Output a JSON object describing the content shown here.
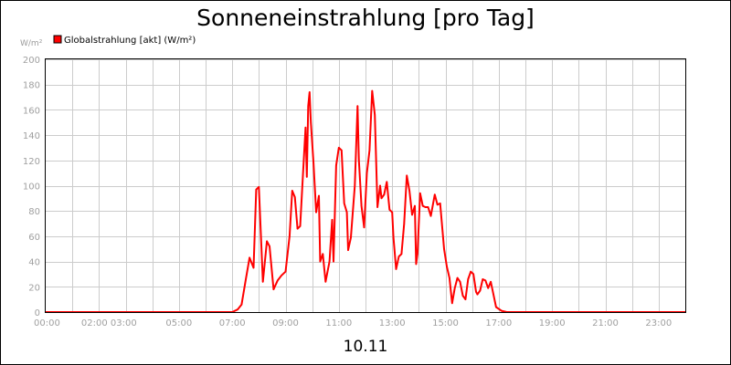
{
  "chart_data": {
    "type": "line",
    "title": "Sonneneinstrahlung [pro Tag]",
    "ylabel": "W/m²",
    "xlabel": "10.11",
    "ylim": [
      0,
      200
    ],
    "y_ticks": [
      0,
      20,
      40,
      60,
      80,
      100,
      120,
      140,
      160,
      180,
      200
    ],
    "x_ticks": [
      {
        "h": 0,
        "label": "00:00"
      },
      {
        "h": 2,
        "label": "02:00 03:00"
      },
      {
        "h": 5,
        "label": "05:00"
      },
      {
        "h": 7,
        "label": "07:00"
      },
      {
        "h": 9,
        "label": "09:00"
      },
      {
        "h": 11,
        "label": "11:00"
      },
      {
        "h": 13,
        "label": "13:00"
      },
      {
        "h": 15,
        "label": "15:00"
      },
      {
        "h": 17,
        "label": "17:00"
      },
      {
        "h": 19,
        "label": "19:00"
      },
      {
        "h": 21,
        "label": "21:00"
      },
      {
        "h": 23,
        "label": "23:00"
      }
    ],
    "grid": true,
    "legend_position": "top-left",
    "series": [
      {
        "name": "Globalstrahlung [akt] (W/m²)",
        "color": "#ff0000",
        "points": [
          [
            0,
            0
          ],
          [
            7.0,
            0
          ],
          [
            7.2,
            2
          ],
          [
            7.35,
            6
          ],
          [
            7.5,
            25
          ],
          [
            7.65,
            43
          ],
          [
            7.8,
            35
          ],
          [
            7.9,
            97
          ],
          [
            8.0,
            99
          ],
          [
            8.15,
            24
          ],
          [
            8.3,
            56
          ],
          [
            8.4,
            52
          ],
          [
            8.55,
            18
          ],
          [
            8.7,
            25
          ],
          [
            8.85,
            29
          ],
          [
            9.0,
            32
          ],
          [
            9.15,
            60
          ],
          [
            9.25,
            96
          ],
          [
            9.35,
            91
          ],
          [
            9.45,
            66
          ],
          [
            9.55,
            68
          ],
          [
            9.65,
            108
          ],
          [
            9.75,
            146
          ],
          [
            9.8,
            107
          ],
          [
            9.85,
            163
          ],
          [
            9.9,
            174
          ],
          [
            9.95,
            150
          ],
          [
            10.05,
            118
          ],
          [
            10.15,
            79
          ],
          [
            10.25,
            92
          ],
          [
            10.3,
            40
          ],
          [
            10.4,
            46
          ],
          [
            10.5,
            24
          ],
          [
            10.65,
            40
          ],
          [
            10.75,
            73
          ],
          [
            10.8,
            40
          ],
          [
            10.9,
            116
          ],
          [
            11.0,
            130
          ],
          [
            11.1,
            128
          ],
          [
            11.2,
            86
          ],
          [
            11.3,
            79
          ],
          [
            11.35,
            49
          ],
          [
            11.45,
            59
          ],
          [
            11.6,
            100
          ],
          [
            11.7,
            163
          ],
          [
            11.75,
            121
          ],
          [
            11.85,
            84
          ],
          [
            11.95,
            67
          ],
          [
            12.05,
            110
          ],
          [
            12.15,
            128
          ],
          [
            12.25,
            175
          ],
          [
            12.35,
            156
          ],
          [
            12.45,
            83
          ],
          [
            12.55,
            100
          ],
          [
            12.6,
            90
          ],
          [
            12.7,
            93
          ],
          [
            12.8,
            103
          ],
          [
            12.9,
            81
          ],
          [
            13.0,
            79
          ],
          [
            13.05,
            59
          ],
          [
            13.15,
            34
          ],
          [
            13.25,
            44
          ],
          [
            13.35,
            46
          ],
          [
            13.45,
            70
          ],
          [
            13.55,
            108
          ],
          [
            13.65,
            96
          ],
          [
            13.75,
            77
          ],
          [
            13.85,
            84
          ],
          [
            13.9,
            38
          ],
          [
            13.95,
            46
          ],
          [
            14.05,
            94
          ],
          [
            14.15,
            84
          ],
          [
            14.25,
            83
          ],
          [
            14.35,
            83
          ],
          [
            14.45,
            76
          ],
          [
            14.6,
            93
          ],
          [
            14.7,
            85
          ],
          [
            14.8,
            86
          ],
          [
            14.95,
            50
          ],
          [
            15.05,
            36
          ],
          [
            15.15,
            27
          ],
          [
            15.25,
            7
          ],
          [
            15.35,
            19
          ],
          [
            15.45,
            27
          ],
          [
            15.55,
            24
          ],
          [
            15.65,
            13
          ],
          [
            15.75,
            10
          ],
          [
            15.85,
            26
          ],
          [
            15.95,
            32
          ],
          [
            16.05,
            30
          ],
          [
            16.15,
            16
          ],
          [
            16.2,
            14
          ],
          [
            16.3,
            17
          ],
          [
            16.4,
            26
          ],
          [
            16.5,
            25
          ],
          [
            16.6,
            19
          ],
          [
            16.7,
            24
          ],
          [
            16.8,
            14
          ],
          [
            16.9,
            4
          ],
          [
            17.1,
            1
          ],
          [
            17.3,
            0
          ],
          [
            24.0,
            0
          ]
        ]
      }
    ]
  }
}
